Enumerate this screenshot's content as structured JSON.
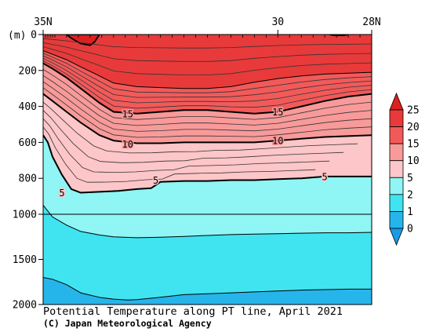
{
  "chart_data": {
    "type": "contour",
    "title": "Potential Temperature along PT line, April 2021",
    "credit": "(C) Japan Meteorological Agency",
    "y_unit": "(m)",
    "x_ticks": [
      {
        "lat": 35,
        "label": "35N"
      },
      {
        "lat": 30,
        "label": "30"
      },
      {
        "lat": 28,
        "label": "28N"
      }
    ],
    "xlim": [
      35,
      28
    ],
    "y_ticks": [
      {
        "depth": 0,
        "label": "0"
      },
      {
        "depth": 200,
        "label": "200"
      },
      {
        "depth": 400,
        "label": "400"
      },
      {
        "depth": 600,
        "label": "600"
      },
      {
        "depth": 800,
        "label": "800"
      },
      {
        "depth": 1000,
        "label": "1000"
      },
      {
        "depth": 1500,
        "label": "1500"
      },
      {
        "depth": 2000,
        "label": "2000"
      }
    ],
    "ylim": [
      0,
      2000
    ],
    "y_scale": "linear 0-1000 m, compressed 1000-2000 m",
    "colorbar": {
      "labels": [
        "25",
        "20",
        "15",
        "10",
        "5",
        "2",
        "1",
        "0"
      ],
      "levels": [
        25,
        20,
        15,
        10,
        5,
        2,
        1,
        0
      ],
      "bands": [
        {
          "from": 20,
          "to": 25,
          "color": "#e83a3a"
        },
        {
          "from": 15,
          "to": 20,
          "color": "#f25a5a"
        },
        {
          "from": 10,
          "to": 15,
          "color": "#f89a9a"
        },
        {
          "from": 5,
          "to": 10,
          "color": "#fdc6c8"
        },
        {
          "from": 2,
          "to": 5,
          "color": "#8ff5f5"
        },
        {
          "from": 1,
          "to": 2,
          "color": "#40e4f0"
        },
        {
          "from": 0,
          "to": 1,
          "color": "#26b5ea"
        }
      ],
      "overflow_color": "#dd2020",
      "underflow_color": "#1a9ae6"
    },
    "contour_labels": [
      {
        "text": "15",
        "lat": 33.2,
        "depth": 440
      },
      {
        "text": "15",
        "lat": 30.0,
        "depth": 430
      },
      {
        "text": "10",
        "lat": 33.2,
        "depth": 610
      },
      {
        "text": "10",
        "lat": 30.0,
        "depth": 590
      },
      {
        "text": "5",
        "lat": 34.6,
        "depth": 880
      },
      {
        "text": "5",
        "lat": 32.6,
        "depth": 810
      },
      {
        "text": "5",
        "lat": 29.0,
        "depth": 790
      }
    ],
    "isotherms": [
      {
        "level": 20,
        "points": [
          [
            35.0,
            90
          ],
          [
            34.8,
            110
          ],
          [
            34.5,
            140
          ],
          [
            34.2,
            180
          ],
          [
            33.8,
            230
          ],
          [
            33.5,
            270
          ],
          [
            33.0,
            290
          ],
          [
            32.5,
            295
          ],
          [
            32.0,
            300
          ],
          [
            31.5,
            300
          ],
          [
            31.0,
            290
          ],
          [
            30.5,
            265
          ],
          [
            30.0,
            245
          ],
          [
            29.5,
            230
          ],
          [
            29.0,
            220
          ],
          [
            28.5,
            215
          ],
          [
            28.0,
            210
          ]
        ]
      },
      {
        "level": 15,
        "points": [
          [
            35.0,
            160
          ],
          [
            34.8,
            190
          ],
          [
            34.5,
            240
          ],
          [
            34.2,
            300
          ],
          [
            33.8,
            380
          ],
          [
            33.5,
            430
          ],
          [
            33.0,
            440
          ],
          [
            32.5,
            430
          ],
          [
            32.0,
            420
          ],
          [
            31.5,
            420
          ],
          [
            31.0,
            430
          ],
          [
            30.5,
            440
          ],
          [
            30.0,
            430
          ],
          [
            29.5,
            400
          ],
          [
            29.0,
            370
          ],
          [
            28.5,
            345
          ],
          [
            28.0,
            330
          ]
        ]
      },
      {
        "level": 10,
        "points": [
          [
            35.0,
            330
          ],
          [
            34.8,
            370
          ],
          [
            34.5,
            430
          ],
          [
            34.2,
            490
          ],
          [
            33.8,
            560
          ],
          [
            33.5,
            590
          ],
          [
            33.0,
            605
          ],
          [
            32.5,
            605
          ],
          [
            32.0,
            600
          ],
          [
            31.5,
            600
          ],
          [
            31.0,
            600
          ],
          [
            30.5,
            600
          ],
          [
            30.0,
            590
          ],
          [
            29.5,
            580
          ],
          [
            29.0,
            570
          ],
          [
            28.5,
            565
          ],
          [
            28.0,
            560
          ]
        ]
      },
      {
        "level": 5,
        "points": [
          [
            35.0,
            560
          ],
          [
            34.9,
            600
          ],
          [
            34.8,
            680
          ],
          [
            34.6,
            780
          ],
          [
            34.4,
            860
          ],
          [
            34.2,
            880
          ],
          [
            33.8,
            875
          ],
          [
            33.4,
            870
          ],
          [
            33.0,
            860
          ],
          [
            32.7,
            855
          ],
          [
            32.5,
            820
          ],
          [
            32.0,
            815
          ],
          [
            31.5,
            815
          ],
          [
            31.0,
            810
          ],
          [
            30.5,
            810
          ],
          [
            30.0,
            805
          ],
          [
            29.5,
            800
          ],
          [
            29.0,
            790
          ],
          [
            28.5,
            790
          ],
          [
            28.0,
            790
          ]
        ]
      },
      {
        "level": 2,
        "points": [
          [
            35.0,
            950
          ],
          [
            34.8,
            1030
          ],
          [
            34.5,
            1120
          ],
          [
            34.2,
            1190
          ],
          [
            33.8,
            1230
          ],
          [
            33.5,
            1250
          ],
          [
            33.0,
            1260
          ],
          [
            32.5,
            1255
          ],
          [
            32.0,
            1245
          ],
          [
            31.5,
            1235
          ],
          [
            31.0,
            1225
          ],
          [
            30.5,
            1220
          ],
          [
            30.0,
            1215
          ],
          [
            29.5,
            1210
          ],
          [
            29.0,
            1205
          ],
          [
            28.5,
            1205
          ],
          [
            28.0,
            1200
          ]
        ]
      },
      {
        "level": 1,
        "points": [
          [
            35.0,
            1700
          ],
          [
            34.8,
            1720
          ],
          [
            34.5,
            1780
          ],
          [
            34.2,
            1870
          ],
          [
            33.8,
            1920
          ],
          [
            33.5,
            1940
          ],
          [
            33.2,
            1950
          ],
          [
            33.0,
            1945
          ],
          [
            32.5,
            1920
          ],
          [
            32.0,
            1890
          ],
          [
            31.5,
            1880
          ],
          [
            31.0,
            1870
          ],
          [
            30.5,
            1860
          ],
          [
            30.0,
            1850
          ],
          [
            29.5,
            1840
          ],
          [
            29.0,
            1835
          ],
          [
            28.5,
            1830
          ],
          [
            28.0,
            1830
          ]
        ]
      }
    ],
    "warm_core_25": {
      "level": 25,
      "points": [
        [
          34.5,
          0
        ],
        [
          34.4,
          20
        ],
        [
          34.2,
          50
        ],
        [
          34.0,
          60
        ],
        [
          33.9,
          40
        ],
        [
          33.8,
          0
        ]
      ]
    },
    "warm_patch_28_5": {
      "level": 25,
      "points": [
        [
          28.9,
          0
        ],
        [
          28.8,
          5
        ],
        [
          28.6,
          5
        ],
        [
          28.5,
          0
        ]
      ]
    }
  }
}
